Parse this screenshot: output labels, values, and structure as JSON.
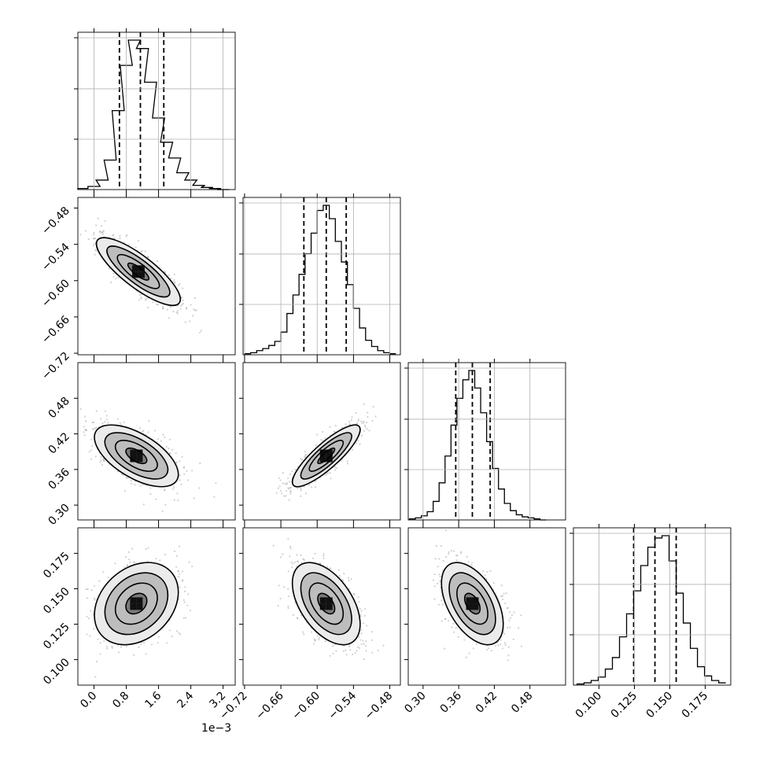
{
  "chart_data": {
    "type": "corner",
    "parameters": [
      {
        "range": [
          -0.0004,
          0.0035
        ],
        "ticks": [
          0.0,
          0.8,
          1.6,
          2.4,
          3.2
        ],
        "tick_labels": [
          "0.0",
          "0.8",
          "1.6",
          "2.4",
          "3.2"
        ],
        "scale": 0.001,
        "multiplier_label": "1e−3",
        "quantiles": [
          0.00063,
          0.00115,
          0.00173
        ],
        "hist_max": 0.95
      },
      {
        "range": [
          -0.7225,
          -0.4625
        ],
        "ticks": [
          -0.72,
          -0.66,
          -0.6,
          -0.54,
          -0.48
        ],
        "tick_labels": [
          "−0.72",
          "−0.66",
          "−0.60",
          "−0.54",
          "−0.48"
        ],
        "scale": 1,
        "quantiles": [
          -0.622,
          -0.585,
          -0.552
        ],
        "hist_max": 0.95
      },
      {
        "range": [
          0.275,
          0.54
        ],
        "ticks": [
          0.3,
          0.36,
          0.42,
          0.48
        ],
        "tick_labels": [
          "0.30",
          "0.36",
          "0.42",
          "0.48"
        ],
        "scale": 1,
        "quantiles": [
          0.355,
          0.383,
          0.413
        ],
        "hist_max": 0.95
      },
      {
        "range": [
          0.082,
          0.193
        ],
        "ticks": [
          0.1,
          0.125,
          0.15,
          0.175
        ],
        "tick_labels": [
          "0.100",
          "0.125",
          "0.150",
          "0.175"
        ],
        "scale": 1,
        "quantiles": [
          0.1245,
          0.1395,
          0.1545
        ],
        "hist_max": 0.95
      }
    ],
    "histograms": [
      {
        "param": 0,
        "bin_centers": [
          -0.0003,
          0.0,
          0.0002,
          0.0004,
          0.0006,
          0.0008,
          0.001,
          0.0012,
          0.0014,
          0.0016,
          0.0018,
          0.002,
          0.0022,
          0.0024,
          0.0026,
          0.0028,
          0.003,
          0.0032
        ],
        "counts": [
          1,
          3,
          9,
          28,
          75,
          118,
          142,
          134,
          102,
          68,
          45,
          30,
          16,
          9,
          4,
          2,
          1,
          0
        ]
      },
      {
        "param": 1,
        "bin_centers": [
          -0.715,
          -0.705,
          -0.695,
          -0.685,
          -0.675,
          -0.665,
          -0.655,
          -0.645,
          -0.635,
          -0.625,
          -0.615,
          -0.605,
          -0.595,
          -0.585,
          -0.575,
          -0.565,
          -0.555,
          -0.545,
          -0.535,
          -0.525,
          -0.515,
          -0.505,
          -0.495,
          -0.485,
          -0.475
        ],
        "counts": [
          1,
          2,
          4,
          6,
          9,
          13,
          22,
          40,
          58,
          78,
          98,
          118,
          140,
          145,
          132,
          110,
          90,
          68,
          45,
          26,
          14,
          8,
          4,
          2,
          1
        ]
      },
      {
        "param": 2,
        "bin_centers": [
          0.282,
          0.292,
          0.302,
          0.312,
          0.322,
          0.332,
          0.342,
          0.352,
          0.362,
          0.372,
          0.382,
          0.392,
          0.402,
          0.412,
          0.422,
          0.432,
          0.442,
          0.452,
          0.462,
          0.472,
          0.482,
          0.492,
          0.502
        ],
        "counts": [
          1,
          2,
          4,
          8,
          18,
          36,
          62,
          92,
          118,
          136,
          145,
          128,
          104,
          76,
          50,
          30,
          16,
          9,
          5,
          3,
          2,
          1,
          0
        ]
      },
      {
        "param": 3,
        "bin_centers": [
          0.087,
          0.092,
          0.097,
          0.102,
          0.107,
          0.112,
          0.117,
          0.122,
          0.127,
          0.132,
          0.137,
          0.142,
          0.147,
          0.152,
          0.157,
          0.162,
          0.167,
          0.172,
          0.177,
          0.182,
          0.187
        ],
        "counts": [
          1,
          2,
          4,
          7,
          14,
          24,
          42,
          62,
          82,
          104,
          120,
          128,
          130,
          108,
          80,
          54,
          32,
          16,
          8,
          4,
          2
        ]
      }
    ],
    "scatter_panels": [
      {
        "x_param": 0,
        "y_param": 1,
        "center": [
          0.0011,
          -0.585
        ],
        "sd": [
          0.00052,
          0.028
        ],
        "rho": -0.82
      },
      {
        "x_param": 0,
        "y_param": 2,
        "center": [
          0.00105,
          0.383
        ],
        "sd": [
          0.00052,
          0.026
        ],
        "rho": -0.6
      },
      {
        "x_param": 1,
        "y_param": 2,
        "center": [
          -0.585,
          0.383
        ],
        "sd": [
          0.028,
          0.026
        ],
        "rho": 0.85
      },
      {
        "x_param": 0,
        "y_param": 3,
        "center": [
          0.00105,
          0.1395
        ],
        "sd": [
          0.00052,
          0.0145
        ],
        "rho": 0.28
      },
      {
        "x_param": 1,
        "y_param": 3,
        "center": [
          -0.585,
          0.1395
        ],
        "sd": [
          0.028,
          0.0145
        ],
        "rho": -0.5
      },
      {
        "x_param": 2,
        "y_param": 3,
        "center": [
          0.383,
          0.1395
        ],
        "sd": [
          0.026,
          0.0145
        ],
        "rho": -0.5
      }
    ],
    "grid": true
  }
}
